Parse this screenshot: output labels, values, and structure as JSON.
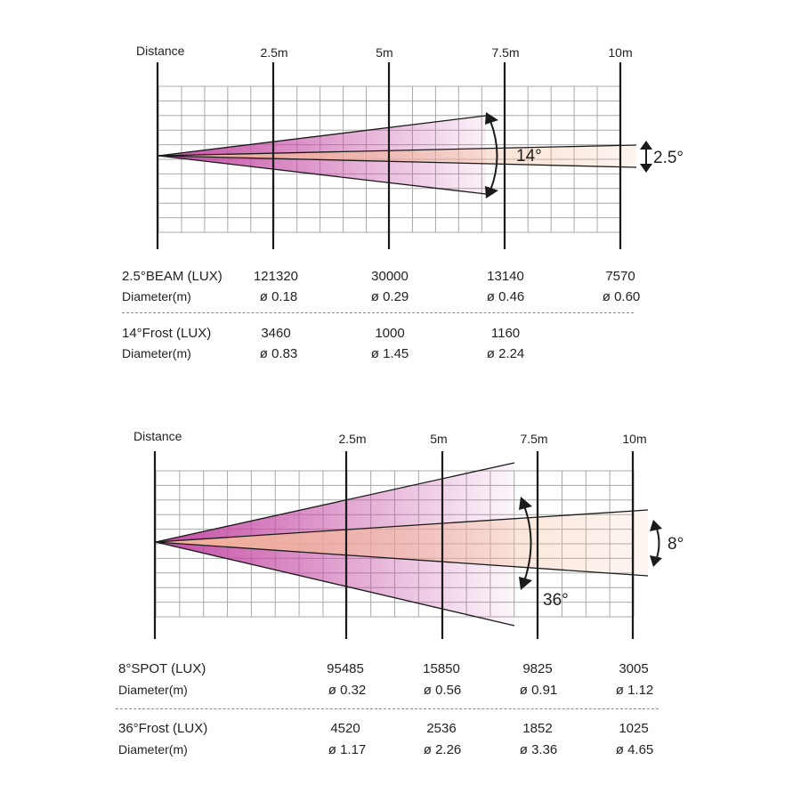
{
  "colors": {
    "grid": "#a8a8a8",
    "axis": "#1a1a1a",
    "beam_magenta": "#c44aa3",
    "beam_peach": "#f4b99a",
    "separator": "#888888"
  },
  "diagram_top": {
    "distance_label": "Distance",
    "columns": [
      "2.5m",
      "5m",
      "7.5m",
      "10m"
    ],
    "wide_angle_label": "14°",
    "narrow_angle_label": "2.5°",
    "table": [
      {
        "label": "2.5°BEAM (LUX)",
        "values": [
          "121320",
          "30000",
          "13140",
          "7570"
        ]
      },
      {
        "label": "Diameter(m)",
        "values": [
          "ø 0.18",
          "ø 0.29",
          "ø 0.46",
          "ø 0.60"
        ]
      },
      {
        "label": "14°Frost (LUX)",
        "values": [
          "3460",
          "1000",
          "1160",
          ""
        ]
      },
      {
        "label": "Diameter(m)",
        "values": [
          "ø 0.83",
          "ø 1.45",
          "ø 2.24",
          ""
        ]
      }
    ]
  },
  "diagram_bottom": {
    "distance_label": "Distance",
    "columns": [
      "2.5m",
      "5m",
      "7.5m",
      "10m"
    ],
    "wide_angle_label": "36°",
    "narrow_angle_label": "8°",
    "table": [
      {
        "label": "8°SPOT (LUX)",
        "values": [
          "95485",
          "15850",
          "9825",
          "3005"
        ]
      },
      {
        "label": "Diameter(m)",
        "values": [
          "ø 0.32",
          "ø 0.56",
          "ø 0.91",
          "ø 1.12"
        ]
      },
      {
        "label": "36°Frost (LUX)",
        "values": [
          "4520",
          "2536",
          "1852",
          "1025"
        ]
      },
      {
        "label": "Diameter(m)",
        "values": [
          "ø 1.17",
          "ø 2.26",
          "ø 3.36",
          "ø 4.65"
        ]
      }
    ]
  }
}
